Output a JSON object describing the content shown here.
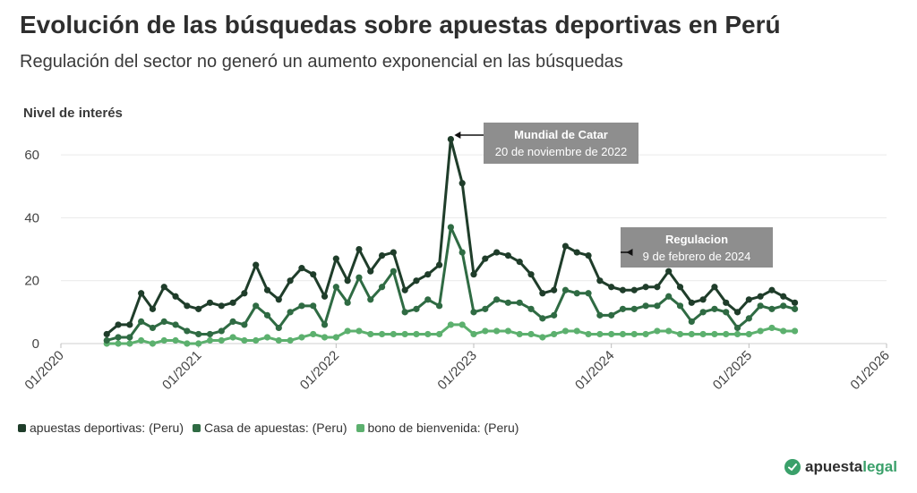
{
  "header": {
    "title": "Evolución de las búsquedas sobre apuestas deportivas en Perú",
    "subtitle": "Regulación del sector no generó un aumento exponencial en las búsquedas"
  },
  "brand": {
    "part1": "apuesta",
    "part2": "legal",
    "logo_icon": "check-icon"
  },
  "colors": {
    "series1": "#1f3d2a",
    "series2": "#2f6b43",
    "series3": "#5cb06e",
    "grid": "#e9e9e9",
    "annotation_bg": "#8e8e8e"
  },
  "chart_data": {
    "type": "line",
    "ylabel": "Nivel de interés",
    "ylim": [
      0,
      70
    ],
    "yticks": [
      0,
      20,
      40,
      60
    ],
    "xticks": [
      "01/2020",
      "01/2021",
      "01/2022",
      "01/2023",
      "01/2024",
      "01/2025",
      "01/2026"
    ],
    "grid": true,
    "legend_position": "bottom-left",
    "x": [
      "2020-05",
      "2020-06",
      "2020-07",
      "2020-08",
      "2020-09",
      "2020-10",
      "2020-11",
      "2020-12",
      "2021-01",
      "2021-02",
      "2021-03",
      "2021-04",
      "2021-05",
      "2021-06",
      "2021-07",
      "2021-08",
      "2021-09",
      "2021-10",
      "2021-11",
      "2021-12",
      "2022-01",
      "2022-02",
      "2022-03",
      "2022-04",
      "2022-05",
      "2022-06",
      "2022-07",
      "2022-08",
      "2022-09",
      "2022-10",
      "2022-11",
      "2022-12",
      "2023-01",
      "2023-02",
      "2023-03",
      "2023-04",
      "2023-05",
      "2023-06",
      "2023-07",
      "2023-08",
      "2023-09",
      "2023-10",
      "2023-11",
      "2023-12",
      "2024-01",
      "2024-02",
      "2024-03",
      "2024-04",
      "2024-05",
      "2024-06",
      "2024-07",
      "2024-08",
      "2024-09",
      "2024-10",
      "2024-11",
      "2024-12",
      "2025-01",
      "2025-02",
      "2025-03",
      "2025-04",
      "2025-05"
    ],
    "series": [
      {
        "name": "apuestas deportivas: (Peru)",
        "values": [
          3,
          6,
          6,
          16,
          11,
          18,
          15,
          12,
          11,
          13,
          12,
          13,
          16,
          25,
          17,
          14,
          20,
          24,
          22,
          15,
          27,
          20,
          30,
          23,
          28,
          29,
          17,
          20,
          22,
          25,
          65,
          51,
          22,
          27,
          29,
          28,
          26,
          22,
          16,
          17,
          31,
          29,
          28,
          20,
          18,
          17,
          17,
          18,
          18,
          23,
          18,
          13,
          14,
          18,
          13,
          10,
          14,
          15,
          17,
          15,
          13
        ]
      },
      {
        "name": "Casa de apuestas: (Peru)",
        "values": [
          1,
          2,
          2,
          7,
          5,
          7,
          6,
          4,
          3,
          3,
          4,
          7,
          6,
          12,
          9,
          5,
          10,
          12,
          12,
          6,
          18,
          13,
          21,
          14,
          18,
          23,
          10,
          11,
          14,
          12,
          37,
          29,
          10,
          11,
          14,
          13,
          13,
          11,
          8,
          9,
          17,
          16,
          16,
          9,
          9,
          11,
          11,
          12,
          12,
          15,
          12,
          7,
          10,
          11,
          10,
          5,
          8,
          12,
          11,
          12,
          11
        ]
      },
      {
        "name": "bono de bienvenida: (Peru)",
        "values": [
          0,
          0,
          0,
          1,
          0,
          1,
          1,
          0,
          0,
          1,
          1,
          2,
          1,
          1,
          2,
          1,
          1,
          2,
          3,
          2,
          2,
          4,
          4,
          3,
          3,
          3,
          3,
          3,
          3,
          3,
          6,
          6,
          3,
          4,
          4,
          4,
          3,
          3,
          2,
          3,
          4,
          4,
          3,
          3,
          3,
          3,
          3,
          3,
          4,
          4,
          3,
          3,
          3,
          3,
          3,
          3,
          3,
          4,
          5,
          4,
          4
        ]
      }
    ],
    "annotations": [
      {
        "title": "Mundial de Catar",
        "date_text": "20 de noviembre de 2022",
        "target_x": "2022-11"
      },
      {
        "title": "Regulacion",
        "date_text": "9 de febrero de 2024",
        "target_x": "2024-02"
      }
    ]
  }
}
